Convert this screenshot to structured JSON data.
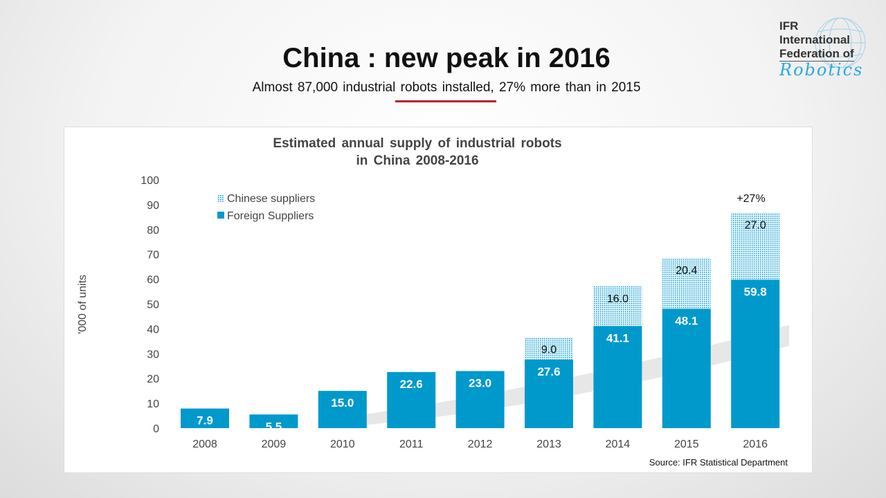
{
  "header": {
    "title": "China : new peak in 2016",
    "subtitle": "Almost 87,000 industrial robots installed, 27% more than in 2015",
    "accent_color": "#b5252b"
  },
  "logo": {
    "line1": "IFR",
    "line2": "International",
    "line3": "Federation of",
    "line4": "Robotics"
  },
  "chart_data": {
    "type": "bar",
    "stacked": true,
    "title": "Estimated annual supply of industrial robots in China 2008-2016",
    "title_lines": [
      "Estimated annual supply of industrial robots",
      "in China 2008-2016"
    ],
    "ylabel": "'000 of units",
    "xlabel": "",
    "ylim": [
      0,
      100
    ],
    "yticks": [
      0,
      10,
      20,
      30,
      40,
      50,
      60,
      70,
      80,
      90,
      100
    ],
    "categories": [
      "2008",
      "2009",
      "2010",
      "2011",
      "2012",
      "2013",
      "2014",
      "2015",
      "2016"
    ],
    "series": [
      {
        "name": "Foreign Suppliers",
        "color": "#0099cc",
        "pattern": "solid",
        "values": [
          7.9,
          5.5,
          15.0,
          22.6,
          23.0,
          27.6,
          41.1,
          48.1,
          59.8
        ]
      },
      {
        "name": "Chinese suppliers",
        "color": "#0099cc",
        "pattern": "dotted",
        "values": [
          null,
          null,
          null,
          null,
          null,
          9.0,
          16.0,
          20.4,
          27.0
        ]
      }
    ],
    "legend": "top-left",
    "grid": false,
    "annotation": "+27%",
    "source": "Source: IFR Statistical Department"
  }
}
